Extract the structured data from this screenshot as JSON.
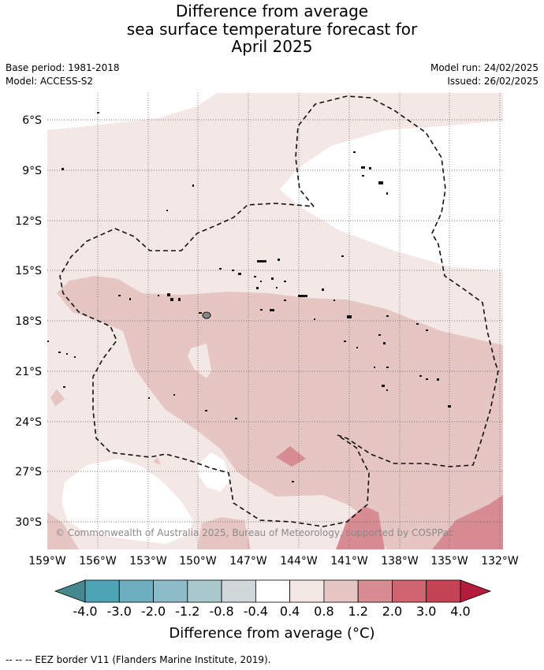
{
  "header": {
    "title_line1": "Difference from average",
    "title_line2": "sea surface temperature forecast for",
    "title_line3": "April 2025",
    "base_period": "Base period: 1981-2018",
    "model": "Model: ACCESS-S2",
    "model_run": "Model run: 24/02/2025",
    "issued": "Issued: 26/02/2025"
  },
  "map": {
    "lat_labels": [
      "6°S",
      "9°S",
      "12°S",
      "15°S",
      "18°S",
      "21°S",
      "24°S",
      "27°S",
      "30°S"
    ],
    "lon_labels": [
      "159°W",
      "156°W",
      "153°W",
      "150°W",
      "147°W",
      "144°W",
      "141°W",
      "138°W",
      "135°W",
      "132°W"
    ],
    "copyright": "© Commonwealth of Australia 2025, Bureau of Meteorology, supported by COSPPac",
    "colors": {
      "lt_04_08": "#f4e8e7",
      "lt_08_12": "#e6c6c3",
      "lt_12_20": "#d78c94",
      "neutral": "#ffffff"
    }
  },
  "colorbar": {
    "labels": [
      "-4.0",
      "-3.0",
      "-2.0",
      "-1.2",
      "-0.8",
      "-0.4",
      "0.4",
      "0.8",
      "1.2",
      "2.0",
      "3.0",
      "4.0"
    ],
    "colors": [
      "#468890",
      "#4da4b4",
      "#6eafbf",
      "#8dbcc8",
      "#a8c8cc",
      "#d2d7d9",
      "#ffffff",
      "#f4e8e7",
      "#e6c6c3",
      "#d78c94",
      "#cd6470",
      "#c44456",
      "#b41c3c"
    ],
    "title": "Difference from average (°C)"
  },
  "footnote": "--  --  -- EEZ border V11 (Flanders Marine Institute, 2019)."
}
